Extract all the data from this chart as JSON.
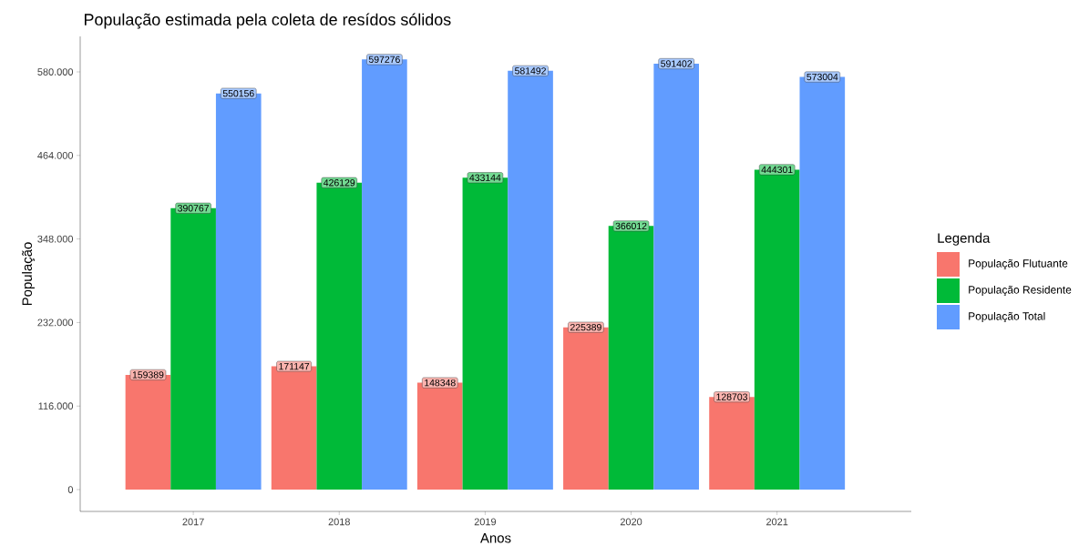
{
  "chart_data": {
    "type": "bar",
    "title": "População estimada pela coleta de resídos sólidos",
    "xlabel": "Anos",
    "ylabel": "População",
    "legend_title": "Legenda",
    "categories": [
      "2017",
      "2018",
      "2019",
      "2020",
      "2021"
    ],
    "series": [
      {
        "name": "População Flutuante",
        "color": "#f8766d",
        "values": [
          159389,
          171147,
          148348,
          225389,
          128703
        ]
      },
      {
        "name": "População Residente",
        "color": "#00ba38",
        "values": [
          390767,
          426129,
          433144,
          366012,
          444301
        ]
      },
      {
        "name": "População Total",
        "color": "#619cff",
        "values": [
          550156,
          597276,
          581492,
          591402,
          573004
        ]
      }
    ],
    "ylim": [
      -30300,
      629300
    ],
    "yticks": [
      {
        "value": 0,
        "label": "0"
      },
      {
        "value": 116000,
        "label": "116.000"
      },
      {
        "value": 232000,
        "label": "232.000"
      },
      {
        "value": 348000,
        "label": "348.000"
      },
      {
        "value": 464000,
        "label": "464.000"
      },
      {
        "value": 580000,
        "label": "580.000"
      }
    ],
    "data_labels": true,
    "legend": "right",
    "grid": false
  }
}
